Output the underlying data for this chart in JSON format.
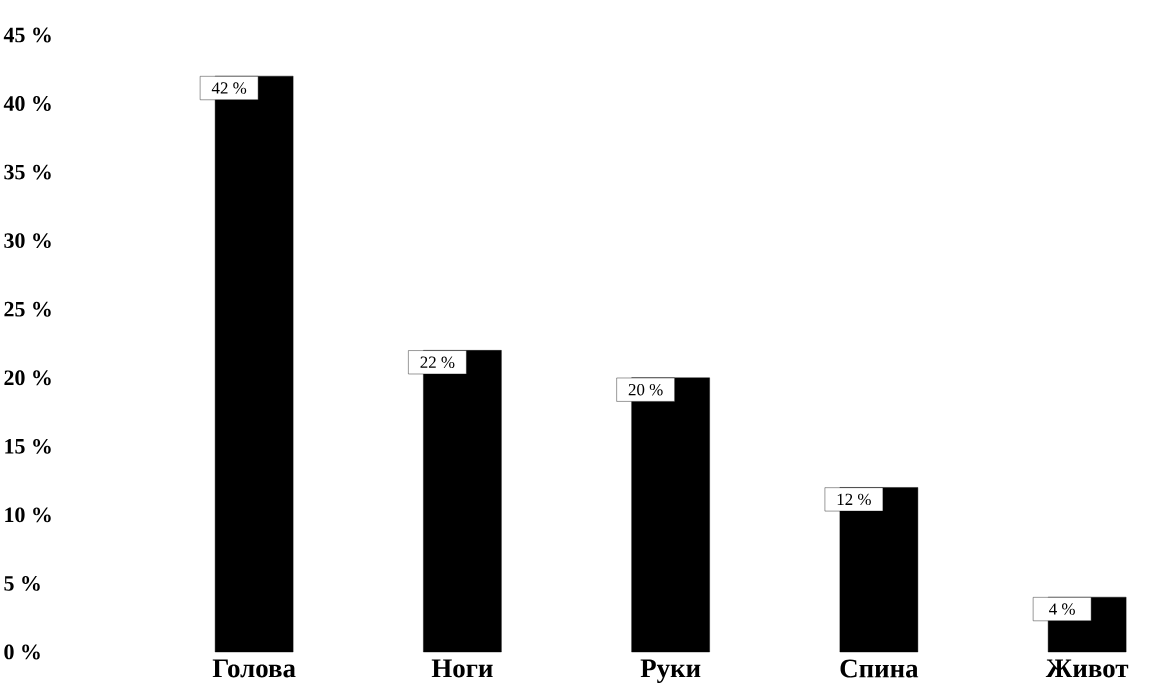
{
  "chart_data": {
    "type": "bar",
    "categories": [
      "Голова",
      "Ноги",
      "Руки",
      "Спина",
      "Живот"
    ],
    "values": [
      42,
      22,
      20,
      12,
      4
    ],
    "value_labels": [
      "42 %",
      "22 %",
      "20 %",
      "12 %",
      "4 %"
    ],
    "color": "#000000",
    "ylim": [
      0,
      45
    ],
    "yticks": [
      {
        "value": 0,
        "label": "0 %"
      },
      {
        "value": 5,
        "label": "5 %"
      },
      {
        "value": 10,
        "label": "10 %"
      },
      {
        "value": 15,
        "label": "15 %"
      },
      {
        "value": 20,
        "label": "20 %"
      },
      {
        "value": 25,
        "label": "25 %"
      },
      {
        "value": 30,
        "label": "30 %"
      },
      {
        "value": 35,
        "label": "35 %"
      },
      {
        "value": 40,
        "label": "40 %"
      },
      {
        "value": 45,
        "label": "45 %"
      }
    ],
    "grid": false
  }
}
